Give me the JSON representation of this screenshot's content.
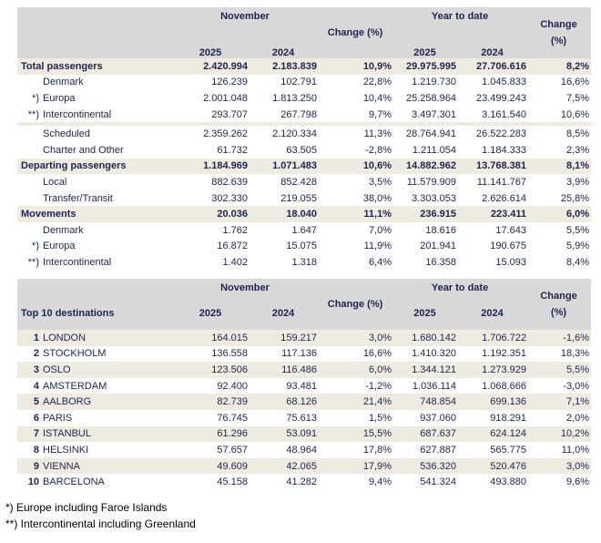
{
  "headers": {
    "november": "November",
    "ytd": "Year to date",
    "y2025": "2025",
    "y2024": "2024",
    "change": "Change (%)",
    "change_a": "Change",
    "change_b": "(%)"
  },
  "table1": [
    {
      "label": "Total passengers",
      "mark": "",
      "type": "bold",
      "v": [
        "2.420.994",
        "2.183.839",
        "10,9%",
        "29.975.995",
        "27.706.616",
        "8,2%"
      ]
    },
    {
      "label": "Denmark",
      "mark": "",
      "type": "sub",
      "v": [
        "126.239",
        "102.791",
        "22,8%",
        "1.219.730",
        "1.045.833",
        "16,6%"
      ]
    },
    {
      "label": "Europa",
      "mark": "*)",
      "type": "sub",
      "v": [
        "2.001.048",
        "1.813.250",
        "10,4%",
        "25.258.964",
        "23.499.243",
        "7,5%"
      ]
    },
    {
      "label": "Intercontinental",
      "mark": "**)",
      "type": "sub",
      "v": [
        "293.707",
        "267.798",
        "9,7%",
        "3.497.301",
        "3.161.540",
        "10,6%"
      ]
    },
    {
      "label": "Scheduled",
      "mark": "",
      "type": "sub",
      "v": [
        "2.359.262",
        "2.120.334",
        "11,3%",
        "28.764.941",
        "26.522.283",
        "8,5%"
      ]
    },
    {
      "label": "Charter and Other",
      "mark": "",
      "type": "sub",
      "v": [
        "61.732",
        "63.505",
        "-2,8%",
        "1.211.054",
        "1.184.333",
        "2,3%"
      ]
    },
    {
      "label": "Departing passengers",
      "mark": "",
      "type": "bold",
      "v": [
        "1.184.969",
        "1.071.483",
        "10,6%",
        "14.882.962",
        "13.768.381",
        "8,1%"
      ]
    },
    {
      "label": "Local",
      "mark": "",
      "type": "sub",
      "v": [
        "882.639",
        "852.428",
        "3,5%",
        "11.579.909",
        "11.141.767",
        "3,9%"
      ]
    },
    {
      "label": "Transfer/Transit",
      "mark": "",
      "type": "sub",
      "v": [
        "302.330",
        "219.055",
        "38,0%",
        "3.303.053",
        "2.626.614",
        "25,8%"
      ]
    },
    {
      "label": "Movements",
      "mark": "",
      "type": "bold",
      "v": [
        "20.036",
        "18.040",
        "11,1%",
        "236.915",
        "223.411",
        "6,0%"
      ]
    },
    {
      "label": "Denmark",
      "mark": "",
      "type": "sub",
      "v": [
        "1.762",
        "1.647",
        "7,0%",
        "18.616",
        "17.643",
        "5,5%"
      ]
    },
    {
      "label": "Europa",
      "mark": "*)",
      "type": "sub",
      "v": [
        "16.872",
        "15.075",
        "11,9%",
        "201.941",
        "190.675",
        "5,9%"
      ]
    },
    {
      "label": "Intercontinental",
      "mark": "**)",
      "type": "sub",
      "v": [
        "1.402",
        "1.318",
        "6,4%",
        "16.358",
        "15.093",
        "8,4%"
      ]
    }
  ],
  "table2_title": "Top 10 destinations",
  "table2": [
    {
      "rank": "1",
      "city": "LONDON",
      "v": [
        "164.015",
        "159.217",
        "3,0%",
        "1.680.142",
        "1.706.722",
        "-1,6%"
      ]
    },
    {
      "rank": "2",
      "city": "STOCKHOLM",
      "v": [
        "136.558",
        "117.136",
        "16,6%",
        "1.410.320",
        "1.192.351",
        "18,3%"
      ]
    },
    {
      "rank": "3",
      "city": "OSLO",
      "v": [
        "123.506",
        "116.486",
        "6,0%",
        "1.344.121",
        "1.273.929",
        "5,5%"
      ]
    },
    {
      "rank": "4",
      "city": "AMSTERDAM",
      "v": [
        "92.400",
        "93.481",
        "-1,2%",
        "1.036.114",
        "1.068.666",
        "-3,0%"
      ]
    },
    {
      "rank": "5",
      "city": "AALBORG",
      "v": [
        "82.739",
        "68.126",
        "21,4%",
        "748.854",
        "699.136",
        "7,1%"
      ]
    },
    {
      "rank": "6",
      "city": "PARIS",
      "v": [
        "76.745",
        "75.613",
        "1,5%",
        "937.060",
        "918.291",
        "2,0%"
      ]
    },
    {
      "rank": "7",
      "city": "ISTANBUL",
      "v": [
        "61.296",
        "53.091",
        "15,5%",
        "687.637",
        "624.124",
        "10,2%"
      ]
    },
    {
      "rank": "8",
      "city": "HELSINKI",
      "v": [
        "57.657",
        "48.964",
        "17,8%",
        "627.887",
        "565.775",
        "11,0%"
      ]
    },
    {
      "rank": "9",
      "city": "VIENNA",
      "v": [
        "49.609",
        "42.065",
        "17,9%",
        "536.320",
        "520.476",
        "3,0%"
      ]
    },
    {
      "rank": "10",
      "city": "BARCELONA",
      "v": [
        "45.158",
        "41.282",
        "9,4%",
        "541.324",
        "493.880",
        "9,6%"
      ]
    }
  ],
  "footnotes": [
    "*) Europe including Faroe Islands",
    "**) Intercontinental including Greenland"
  ]
}
